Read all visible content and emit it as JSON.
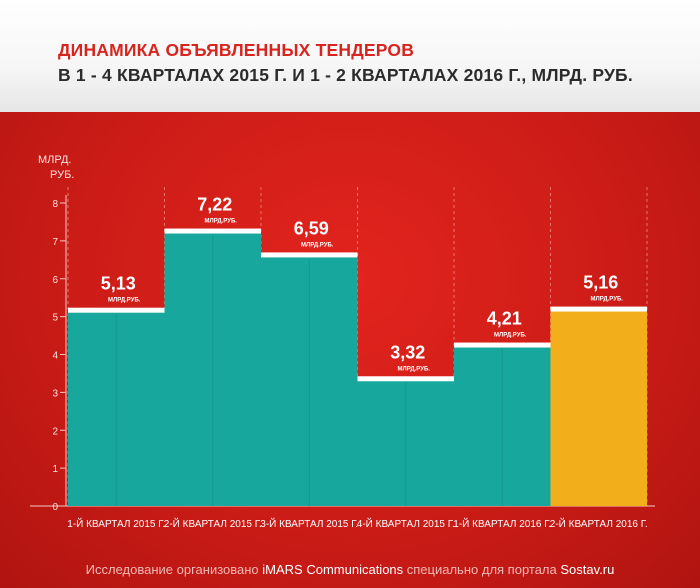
{
  "header": {
    "title": "ДИНАМИКА ОБЪЯВЛЕННЫХ ТЕНДЕРОВ",
    "subtitle": "В 1 - 4 КВАРТАЛАХ 2015 Г.  И 1 - 2 КВАРТАЛАХ 2016  Г., МЛРД. РУБ."
  },
  "footer": {
    "prefix": "Исследование организовано ",
    "org": "iMARS Communications",
    "middle": " специально для портала ",
    "portal": "Sostav.ru"
  },
  "colors": {
    "teal": "#17a79c",
    "highlight": "#f2ae1b",
    "background": "#d01f19"
  },
  "chart_data": {
    "type": "bar",
    "ylabel": "МЛРД. РУБ.",
    "ylim": [
      0,
      8
    ],
    "yticks": [
      "0",
      "1",
      "2",
      "3",
      "4",
      "5",
      "6",
      "7",
      "8"
    ],
    "categories": [
      "1-Й КВАРТАЛ 2015 Г.",
      "2-Й КВАРТАЛ 2015 Г.",
      "3-Й КВАРТАЛ 2015 Г.",
      "4-Й КВАРТАЛ 2015 Г.",
      "1-Й КВАРТАЛ 2016 Г.",
      "2-Й КВАРТАЛ 2016 Г."
    ],
    "values": [
      5.13,
      7.22,
      6.59,
      3.32,
      4.21,
      5.16
    ],
    "value_labels": [
      "5,13",
      "7,22",
      "6,59",
      "3,32",
      "4,21",
      "5,16"
    ],
    "unit_label": "МЛРД.РУБ.",
    "highlight_index": 5,
    "grid": "vertical dashed"
  }
}
